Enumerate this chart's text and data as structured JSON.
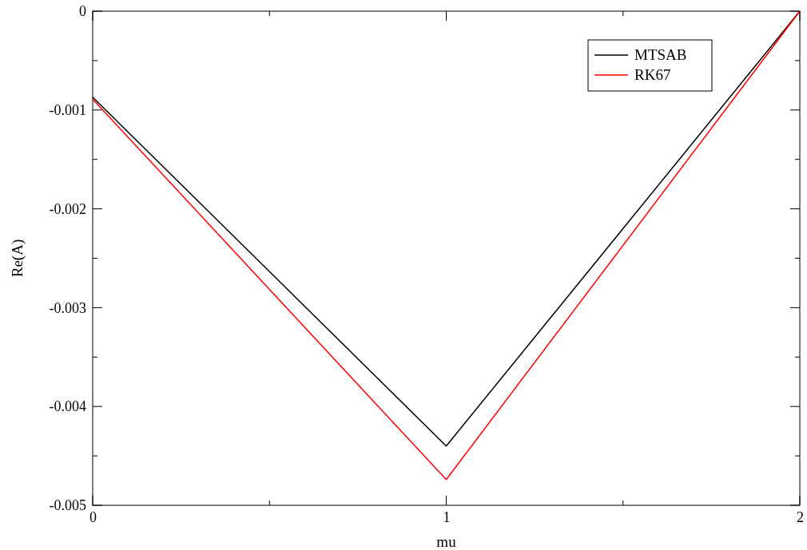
{
  "chart_data": {
    "type": "line",
    "xlabel": "mu",
    "ylabel": "Re(A)",
    "x": [
      0,
      1,
      2
    ],
    "series": [
      {
        "name": "MTSAB",
        "color": "#000000",
        "values": [
          -0.00087,
          -0.0044,
          0
        ]
      },
      {
        "name": "RK67",
        "color": "#ff0000",
        "values": [
          -0.00089,
          -0.00474,
          0
        ]
      }
    ],
    "xlim": [
      0,
      2
    ],
    "xticks": [
      0,
      {
        "value": 0.5,
        "label": null
      },
      1,
      {
        "value": 1.5,
        "label": null
      },
      2
    ],
    "ylim": [
      -0.005,
      0
    ],
    "yticks": [
      -0.005,
      {
        "value": -0.0045,
        "label": null
      },
      -0.004,
      {
        "value": -0.0035,
        "label": null
      },
      -0.003,
      {
        "value": -0.0025,
        "label": null
      },
      -0.002,
      {
        "value": -0.0015,
        "label": null
      },
      -0.001,
      {
        "value": -0.0005,
        "label": null
      },
      0
    ],
    "legend": "top right",
    "grid": false,
    "marker": "none",
    "line_style": "solid"
  }
}
